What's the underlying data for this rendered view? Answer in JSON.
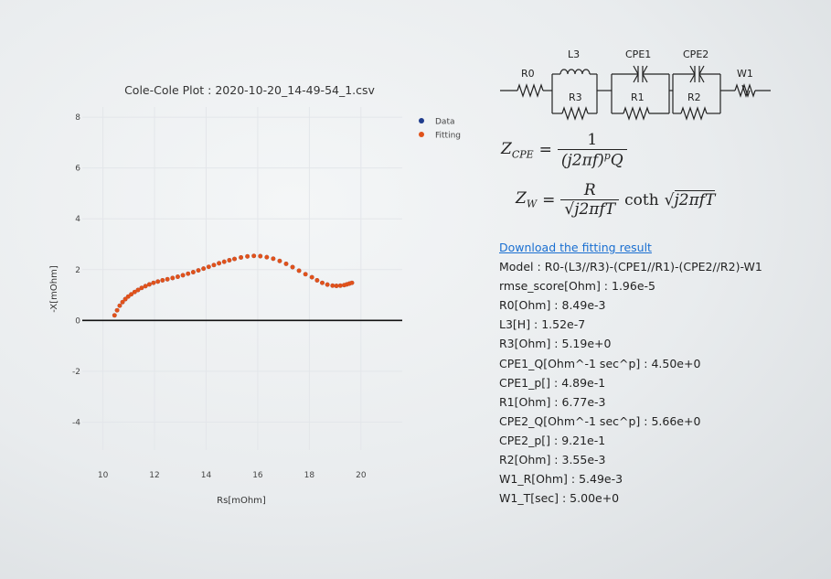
{
  "chart_data": {
    "type": "scatter",
    "title": "Cole-Cole Plot : 2020-10-20_14-49-54_1.csv",
    "xlabel": "Rs[mOhm]",
    "ylabel": "-X[mOhm]",
    "xlim": [
      9.2,
      21.6
    ],
    "ylim": [
      -5.1,
      8.4
    ],
    "xticks": [
      10,
      12,
      14,
      16,
      18,
      20
    ],
    "yticks": [
      -4,
      -2,
      0,
      2,
      4,
      6,
      8
    ],
    "grid": true,
    "legend_position": "top-right",
    "series": [
      {
        "name": "Data",
        "color": "#1f3c8c",
        "x": [
          10.45,
          10.55,
          10.65,
          10.76,
          10.87,
          10.98,
          11.1,
          11.23,
          11.36,
          11.5,
          11.65,
          11.8,
          11.96,
          12.13,
          12.31,
          12.5,
          12.7,
          12.9,
          13.1,
          13.3,
          13.5,
          13.7,
          13.9,
          14.1,
          14.3,
          14.5,
          14.7,
          14.9,
          15.1,
          15.35,
          15.6,
          15.85,
          16.1,
          16.35,
          16.6,
          16.85,
          17.1,
          17.35,
          17.6,
          17.85,
          18.1,
          18.3,
          18.5,
          18.7,
          18.9,
          19.05,
          19.2,
          19.35,
          19.45,
          19.55,
          19.65
        ],
        "y": [
          0.2,
          0.4,
          0.58,
          0.72,
          0.84,
          0.94,
          1.03,
          1.12,
          1.2,
          1.28,
          1.35,
          1.42,
          1.48,
          1.53,
          1.58,
          1.62,
          1.67,
          1.72,
          1.78,
          1.84,
          1.9,
          1.97,
          2.04,
          2.11,
          2.18,
          2.25,
          2.31,
          2.37,
          2.42,
          2.48,
          2.52,
          2.54,
          2.53,
          2.49,
          2.43,
          2.34,
          2.23,
          2.1,
          1.96,
          1.82,
          1.7,
          1.58,
          1.48,
          1.41,
          1.37,
          1.36,
          1.37,
          1.39,
          1.42,
          1.45,
          1.48
        ]
      },
      {
        "name": "Fitting",
        "color": "#e0521b",
        "x": [
          10.45,
          10.55,
          10.65,
          10.76,
          10.87,
          10.98,
          11.1,
          11.23,
          11.36,
          11.5,
          11.65,
          11.8,
          11.96,
          12.13,
          12.31,
          12.5,
          12.7,
          12.9,
          13.1,
          13.3,
          13.5,
          13.7,
          13.9,
          14.1,
          14.3,
          14.5,
          14.7,
          14.9,
          15.1,
          15.35,
          15.6,
          15.85,
          16.1,
          16.35,
          16.6,
          16.85,
          17.1,
          17.35,
          17.6,
          17.85,
          18.1,
          18.3,
          18.5,
          18.7,
          18.9,
          19.05,
          19.2,
          19.35,
          19.45,
          19.55,
          19.65
        ],
        "y": [
          0.2,
          0.4,
          0.58,
          0.72,
          0.84,
          0.94,
          1.03,
          1.12,
          1.2,
          1.28,
          1.35,
          1.42,
          1.48,
          1.53,
          1.58,
          1.62,
          1.67,
          1.72,
          1.78,
          1.84,
          1.9,
          1.97,
          2.04,
          2.11,
          2.18,
          2.25,
          2.31,
          2.37,
          2.42,
          2.48,
          2.52,
          2.54,
          2.53,
          2.49,
          2.43,
          2.34,
          2.23,
          2.1,
          1.96,
          1.82,
          1.7,
          1.58,
          1.48,
          1.41,
          1.37,
          1.36,
          1.37,
          1.39,
          1.42,
          1.45,
          1.48
        ]
      }
    ]
  },
  "circuit": {
    "labels": {
      "r0": "R0",
      "l3": "L3",
      "r3": "R3",
      "cpe1": "CPE1",
      "r1": "R1",
      "cpe2": "CPE2",
      "r2": "R2",
      "w1": "W1"
    }
  },
  "equations": {
    "zcpe_lhs": "Z",
    "zcpe_sub": "CPE",
    "zcpe_num": "1",
    "zcpe_den_html": "(j2πf)",
    "zcpe_den_exp": "p",
    "zcpe_den_tail": "Q",
    "zw_lhs": "Z",
    "zw_sub": "W",
    "zw_num": "R",
    "zw_den": "j2πfT",
    "zw_coth": "coth",
    "zw_sqrt": "j2πfT"
  },
  "results": {
    "download_link": "Download the fitting result",
    "lines": [
      "Model : R0-(L3//R3)-(CPE1//R1)-(CPE2//R2)-W1",
      "rmse_score[Ohm] : 1.96e-5",
      "R0[Ohm] : 8.49e-3",
      "L3[H] : 1.52e-7",
      "R3[Ohm] : 5.19e+0",
      "CPE1_Q[Ohm^-1 sec^p] : 4.50e+0",
      "CPE1_p[] : 4.89e-1",
      "R1[Ohm] : 6.77e-3",
      "CPE2_Q[Ohm^-1 sec^p] : 5.66e+0",
      "CPE2_p[] : 9.21e-1",
      "R2[Ohm] : 3.55e-3",
      "W1_R[Ohm] : 5.49e-3",
      "W1_T[sec] : 5.00e+0"
    ]
  }
}
